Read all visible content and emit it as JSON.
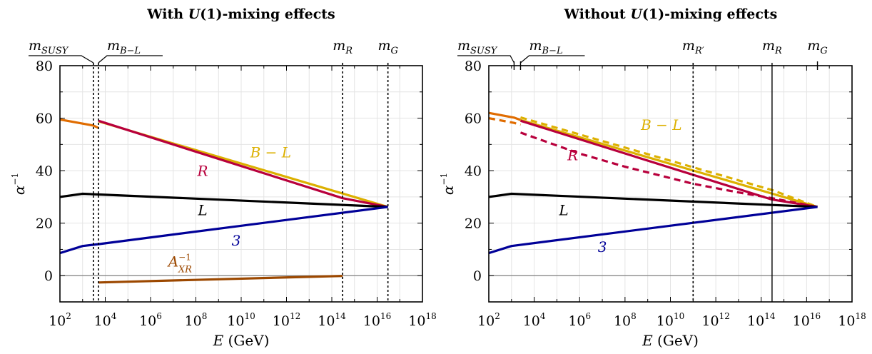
{
  "colors": {
    "orange": "#e06c00",
    "gold": "#dcb000",
    "red": "#b8003c",
    "black": "#000000",
    "blue": "#000098",
    "brown": "#9c4800",
    "grid": "#e4e4e4"
  },
  "chart_data": [
    {
      "type": "line",
      "title": "With U(1)-mixing effects",
      "title_parts": [
        "With ",
        "U",
        "(1)-mixing effects"
      ],
      "xlabel": "E (GeV)",
      "xlabel_parts": [
        "E",
        " (GeV)"
      ],
      "ylabel": "α⁻¹",
      "ylabel_parts": [
        "α",
        "−1"
      ],
      "x_scale": "log",
      "xlim": [
        100,
        1e+18
      ],
      "ylim": [
        -10,
        80
      ],
      "x_ticks": [
        "10^2",
        "10^4",
        "10^6",
        "10^8",
        "10^10",
        "10^12",
        "10^14",
        "10^16",
        "10^18"
      ],
      "x_ticks_parts": [
        [
          "10",
          "2"
        ],
        [
          "10",
          "4"
        ],
        [
          "10",
          "6"
        ],
        [
          "10",
          "8"
        ],
        [
          "10",
          "10"
        ],
        [
          "10",
          "12"
        ],
        [
          "10",
          "14"
        ],
        [
          "10",
          "16"
        ],
        [
          "10",
          "18"
        ]
      ],
      "y_ticks": [
        "0",
        "20",
        "40",
        "60",
        "80"
      ],
      "grid": true,
      "scales": [
        {
          "name": "m_SUSY",
          "base": "m",
          "sub": "SUSY",
          "x": 3000,
          "style": "dotted"
        },
        {
          "name": "m_B-L",
          "base": "m",
          "sub": "B−L",
          "x": 5000,
          "style": "dotted"
        },
        {
          "name": "m_R",
          "base": "m",
          "sub": "R",
          "x": 300000000000000.0,
          "style": "dotted"
        },
        {
          "name": "m_G",
          "base": "m",
          "sub": "G",
          "x": 3e+16,
          "style": "dotted"
        }
      ],
      "series": [
        {
          "label": "",
          "color": "orange",
          "style": "solid",
          "points": [
            [
              100,
              59.5
            ],
            [
              3000,
              57.2
            ],
            [
              5000,
              56.3
            ]
          ]
        },
        {
          "label": "B − L",
          "color": "gold",
          "style": "solid",
          "points": [
            [
              5000,
              58.8
            ],
            [
              3e+16,
              26.2
            ]
          ]
        },
        {
          "label": "R",
          "color": "red",
          "style": "solid",
          "points": [
            [
              5000,
              59.0
            ],
            [
              300000000000000.0,
              29.5
            ],
            [
              3e+16,
              26.2
            ]
          ]
        },
        {
          "label": "L",
          "color": "black",
          "style": "solid",
          "points": [
            [
              100,
              30.0
            ],
            [
              1000,
              31.2
            ],
            [
              3e+16,
              26.2
            ]
          ]
        },
        {
          "label": "3",
          "color": "blue",
          "style": "solid",
          "points": [
            [
              100,
              8.6
            ],
            [
              1000,
              11.3
            ],
            [
              5000,
              12.0
            ],
            [
              3e+16,
              26.2
            ]
          ]
        },
        {
          "label": "A_XR^-1",
          "label_parts": [
            "A",
            "−1",
            "XR"
          ],
          "color": "brown",
          "style": "solid",
          "points": [
            [
              5000,
              -2.6
            ],
            [
              300000000000000.0,
              -0.1
            ]
          ]
        }
      ],
      "annotations": [
        {
          "series": "B − L",
          "x": 200000000000.0,
          "y": 45
        },
        {
          "series": "R",
          "x": 200000000.0,
          "y": 38
        },
        {
          "series": "L",
          "x": 200000000.0,
          "y": 23
        },
        {
          "series": "3",
          "x": 6000000000.0,
          "y": 11.5
        },
        {
          "series": "A_XR^-1",
          "x": 20000000.0,
          "y": 3.5
        }
      ]
    },
    {
      "type": "line",
      "title": "Without U(1)-mixing effects",
      "title_parts": [
        "Without ",
        "U",
        "(1)-mixing effects"
      ],
      "xlabel": "E (GeV)",
      "xlabel_parts": [
        "E",
        " (GeV)"
      ],
      "ylabel": "α⁻¹",
      "ylabel_parts": [
        "α",
        "−1"
      ],
      "x_scale": "log",
      "xlim": [
        100,
        1e+18
      ],
      "ylim": [
        -10,
        80
      ],
      "x_ticks": [
        "10^2",
        "10^4",
        "10^6",
        "10^8",
        "10^10",
        "10^12",
        "10^14",
        "10^16",
        "10^18"
      ],
      "x_ticks_parts": [
        [
          "10",
          "2"
        ],
        [
          "10",
          "4"
        ],
        [
          "10",
          "6"
        ],
        [
          "10",
          "8"
        ],
        [
          "10",
          "10"
        ],
        [
          "10",
          "12"
        ],
        [
          "10",
          "14"
        ],
        [
          "10",
          "16"
        ],
        [
          "10",
          "18"
        ]
      ],
      "y_ticks": [
        "0",
        "20",
        "40",
        "60",
        "80"
      ],
      "grid": true,
      "scales": [
        {
          "name": "m_SUSY",
          "base": "m",
          "sub": "SUSY",
          "x": 1300,
          "style": "tick"
        },
        {
          "name": "m_B-L",
          "base": "m",
          "sub": "B−L",
          "x": 2500,
          "style": "tick"
        },
        {
          "name": "m_R'",
          "base": "m",
          "sub": "R′",
          "x": 100000000000.0,
          "style": "dotted"
        },
        {
          "name": "m_R",
          "base": "m",
          "sub": "R",
          "x": 300000000000000.0,
          "style": "solid"
        },
        {
          "name": "m_G",
          "base": "m",
          "sub": "G",
          "x": 3e+16,
          "style": "tick"
        }
      ],
      "series": [
        {
          "label": "",
          "color": "orange",
          "style": "solid",
          "points": [
            [
              100,
              62.0
            ],
            [
              1300,
              60.2
            ],
            [
              2500,
              59.3
            ]
          ]
        },
        {
          "label": "",
          "color": "orange",
          "style": "dashed",
          "points": [
            [
              100,
              60.0
            ],
            [
              1300,
              58.2
            ],
            [
              2500,
              57.5
            ]
          ]
        },
        {
          "label": "B − L",
          "color": "gold",
          "style": "solid",
          "points": [
            [
              2500,
              59.3
            ],
            [
              3e+16,
              26.2
            ]
          ]
        },
        {
          "label": "",
          "color": "gold",
          "style": "dashed",
          "points": [
            [
              2500,
              60.3
            ],
            [
              300000000000000.0,
              32.6
            ],
            [
              3e+16,
              26.2
            ]
          ]
        },
        {
          "label": "R",
          "color": "red",
          "style": "solid",
          "points": [
            [
              2500,
              59.0
            ],
            [
              300000000000000.0,
              29.0
            ],
            [
              3e+16,
              26.2
            ]
          ]
        },
        {
          "label": "",
          "color": "red",
          "style": "dashed",
          "points": [
            [
              2500,
              54.5
            ],
            [
              1000000.0,
              46.5
            ],
            [
              100000000.0,
              41.5
            ],
            [
              100000000000.0,
              35.0
            ],
            [
              10000000000000.0,
              31.7
            ],
            [
              300000000000000.0,
              29.5
            ],
            [
              3e+16,
              26.2
            ]
          ]
        },
        {
          "label": "L",
          "color": "black",
          "style": "solid",
          "points": [
            [
              100,
              30.0
            ],
            [
              1000,
              31.2
            ],
            [
              3e+16,
              26.2
            ]
          ]
        },
        {
          "label": "3",
          "color": "blue",
          "style": "solid",
          "points": [
            [
              100,
              8.6
            ],
            [
              1000,
              11.3
            ],
            [
              3e+16,
              26.2
            ]
          ]
        }
      ],
      "annotations": [
        {
          "series": "B − L",
          "x": 4000000000.0,
          "y": 55.5
        },
        {
          "series": "R",
          "x": 500000.0,
          "y": 44
        },
        {
          "series": "L",
          "x": 200000.0,
          "y": 23
        },
        {
          "series": "3",
          "x": 10000000.0,
          "y": 9
        }
      ]
    }
  ]
}
